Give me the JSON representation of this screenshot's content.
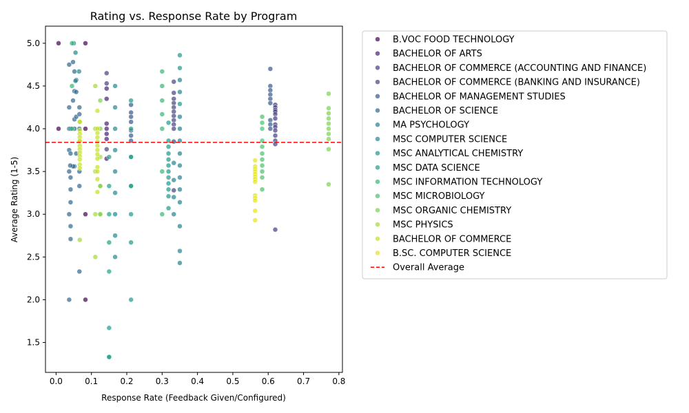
{
  "chart_data": {
    "type": "scatter",
    "title": "Rating vs. Response Rate by Program",
    "xlabel": "Response Rate (Feedback Given/Configured)",
    "ylabel": "Average Rating (1-5)",
    "xlim": [
      -0.03,
      0.81
    ],
    "ylim": [
      1.15,
      5.2
    ],
    "xticks": [
      0.0,
      0.1,
      0.2,
      0.3,
      0.4,
      0.5,
      0.6,
      0.7,
      0.8
    ],
    "xtick_labels": [
      "0.0",
      "0.1",
      "0.2",
      "0.3",
      "0.4",
      "0.5",
      "0.6",
      "0.7",
      "0.8"
    ],
    "yticks": [
      1.5,
      2.0,
      2.5,
      3.0,
      3.5,
      4.0,
      4.5,
      5.0
    ],
    "ytick_labels": [
      "1.5",
      "2.0",
      "2.5",
      "3.0",
      "3.5",
      "4.0",
      "4.5",
      "5.0"
    ],
    "grid": false,
    "legend_position": "outside-right",
    "reference_line": {
      "label": "Overall Average",
      "y": 3.84,
      "color": "#ff0000",
      "style": "dashed"
    },
    "series": [
      {
        "name": "B.VOC FOOD TECHNOLOGY",
        "color": "#440154",
        "points": [
          [
            0.007,
            5.0
          ],
          [
            0.007,
            4.0
          ],
          [
            0.083,
            5.0
          ],
          [
            0.083,
            4.0
          ],
          [
            0.083,
            3.0
          ],
          [
            0.083,
            2.0
          ]
        ]
      },
      {
        "name": "BACHELOR OF ARTS",
        "color": "#482173",
        "points": [
          [
            0.143,
            4.47
          ],
          [
            0.143,
            4.35
          ],
          [
            0.143,
            4.06
          ],
          [
            0.143,
            4.0
          ],
          [
            0.143,
            3.94
          ],
          [
            0.143,
            3.88
          ],
          [
            0.143,
            3.65
          ]
        ]
      },
      {
        "name": "BACHELOR OF COMMERCE (ACCOUNTING AND FINANCE)",
        "color": "#433e85",
        "points": [
          [
            0.62,
            4.28
          ],
          [
            0.62,
            4.25
          ],
          [
            0.62,
            4.22
          ],
          [
            0.62,
            4.2
          ],
          [
            0.62,
            4.17
          ],
          [
            0.62,
            4.12
          ],
          [
            0.62,
            4.05
          ],
          [
            0.62,
            4.02
          ],
          [
            0.62,
            3.98
          ],
          [
            0.62,
            3.92
          ],
          [
            0.62,
            3.86
          ],
          [
            0.62,
            3.82
          ],
          [
            0.62,
            2.82
          ]
        ]
      },
      {
        "name": "BACHELOR OF COMMERCE (BANKING AND INSURANCE)",
        "color": "#46427f",
        "points": [
          [
            0.333,
            4.42
          ],
          [
            0.333,
            4.35
          ],
          [
            0.333,
            4.3
          ],
          [
            0.333,
            4.25
          ],
          [
            0.333,
            4.2
          ],
          [
            0.333,
            4.15
          ],
          [
            0.333,
            4.1
          ],
          [
            0.333,
            4.05
          ],
          [
            0.333,
            4.0
          ],
          [
            0.333,
            3.85
          ],
          [
            0.143,
            4.65
          ],
          [
            0.143,
            4.53
          ],
          [
            0.143,
            3.76
          ],
          [
            0.333,
            4.55
          ],
          [
            0.333,
            3.28
          ]
        ]
      },
      {
        "name": "BACHELOR OF MANAGEMENT STUDIES",
        "color": "#38588c",
        "points": [
          [
            0.606,
            4.7
          ],
          [
            0.606,
            4.5
          ],
          [
            0.606,
            4.45
          ],
          [
            0.606,
            4.4
          ],
          [
            0.606,
            4.35
          ],
          [
            0.606,
            4.3
          ],
          [
            0.606,
            4.1
          ],
          [
            0.606,
            4.05
          ],
          [
            0.606,
            4.0
          ],
          [
            0.212,
            4.28
          ],
          [
            0.212,
            4.19
          ],
          [
            0.212,
            4.14
          ],
          [
            0.212,
            4.08
          ],
          [
            0.212,
            3.98
          ],
          [
            0.212,
            3.92
          ],
          [
            0.212,
            3.86
          ]
        ]
      },
      {
        "name": "BACHELOR OF SCIENCE",
        "color": "#31688e",
        "points": [
          [
            0.037,
            4.75
          ],
          [
            0.037,
            4.25
          ],
          [
            0.037,
            4.0
          ],
          [
            0.037,
            3.75
          ],
          [
            0.037,
            3.5
          ],
          [
            0.037,
            3.0
          ],
          [
            0.037,
            2.0
          ],
          [
            0.041,
            4.0
          ],
          [
            0.041,
            3.71
          ],
          [
            0.041,
            3.43
          ],
          [
            0.041,
            3.29
          ],
          [
            0.041,
            3.14
          ],
          [
            0.041,
            2.86
          ],
          [
            0.041,
            2.71
          ],
          [
            0.052,
            4.67
          ],
          [
            0.052,
            4.44
          ],
          [
            0.052,
            4.11
          ],
          [
            0.052,
            4.0
          ],
          [
            0.052,
            3.56
          ],
          [
            0.057,
            4.57
          ],
          [
            0.057,
            4.14
          ],
          [
            0.057,
            4.43
          ],
          [
            0.057,
            3.71
          ],
          [
            0.066,
            4.25
          ],
          [
            0.066,
            4.17
          ],
          [
            0.066,
            4.0
          ],
          [
            0.066,
            3.5
          ],
          [
            0.066,
            3.33
          ],
          [
            0.066,
            2.33
          ],
          [
            0.048,
            4.78
          ],
          [
            0.048,
            4.33
          ],
          [
            0.048,
            3.56
          ],
          [
            0.04,
            3.57
          ]
        ]
      },
      {
        "name": "MA PSYCHOLOGY",
        "color": "#26828e",
        "points": [
          [
            0.35,
            4.57
          ],
          [
            0.35,
            4.43
          ],
          [
            0.35,
            4.14
          ],
          [
            0.35,
            4.0
          ],
          [
            0.35,
            3.86
          ],
          [
            0.35,
            3.71
          ],
          [
            0.35,
            3.57
          ],
          [
            0.35,
            3.43
          ],
          [
            0.35,
            3.29
          ],
          [
            0.35,
            3.14
          ],
          [
            0.35,
            2.86
          ],
          [
            0.35,
            2.57
          ],
          [
            0.35,
            2.43
          ],
          [
            0.333,
            3.6
          ],
          [
            0.333,
            3.4
          ],
          [
            0.333,
            3.2
          ],
          [
            0.333,
            3.0
          ]
        ]
      },
      {
        "name": "MSC COMPUTER SCIENCE",
        "color": "#23898e",
        "points": [
          [
            0.167,
            4.5
          ],
          [
            0.167,
            4.25
          ],
          [
            0.167,
            4.0
          ],
          [
            0.167,
            3.75
          ],
          [
            0.167,
            3.5
          ],
          [
            0.167,
            3.25
          ],
          [
            0.167,
            3.0
          ],
          [
            0.167,
            2.75
          ],
          [
            0.167,
            2.5
          ],
          [
            0.065,
            4.67
          ],
          [
            0.055,
            4.89
          ],
          [
            0.05,
            5.0
          ],
          [
            0.055,
            4.56
          ]
        ]
      },
      {
        "name": "MSC ANALYTICAL CHEMISTRY",
        "color": "#1f988b",
        "points": [
          [
            0.35,
            4.86
          ],
          [
            0.35,
            4.71
          ],
          [
            0.35,
            4.29
          ],
          [
            0.318,
            4.07
          ],
          [
            0.318,
            3.86
          ],
          [
            0.318,
            3.79
          ],
          [
            0.318,
            3.71
          ],
          [
            0.318,
            3.64
          ],
          [
            0.318,
            3.57
          ],
          [
            0.318,
            3.5
          ],
          [
            0.318,
            3.43
          ],
          [
            0.318,
            3.36
          ],
          [
            0.318,
            3.29
          ],
          [
            0.318,
            3.21
          ],
          [
            0.318,
            3.07
          ],
          [
            0.212,
            4.33
          ],
          [
            0.212,
            3.67
          ],
          [
            0.212,
            3.33
          ],
          [
            0.212,
            3.0
          ],
          [
            0.212,
            2.67
          ],
          [
            0.212,
            2.0
          ],
          [
            0.15,
            1.67
          ],
          [
            0.15,
            1.33
          ]
        ]
      },
      {
        "name": "MSC DATA SCIENCE",
        "color": "#20a386",
        "points": [
          [
            0.15,
            3.33
          ],
          [
            0.15,
            3.0
          ],
          [
            0.15,
            2.67
          ],
          [
            0.15,
            2.33
          ],
          [
            0.15,
            1.33
          ],
          [
            0.15,
            3.67
          ],
          [
            0.212,
            4.0
          ],
          [
            0.212,
            3.67
          ],
          [
            0.212,
            3.33
          ]
        ]
      },
      {
        "name": "MSC INFORMATION TECHNOLOGY",
        "color": "#35b779",
        "points": [
          [
            0.3,
            4.67
          ],
          [
            0.3,
            4.5
          ],
          [
            0.3,
            4.33
          ],
          [
            0.3,
            4.17
          ],
          [
            0.3,
            4.0
          ],
          [
            0.3,
            3.5
          ],
          [
            0.3,
            3.0
          ],
          [
            0.125,
            3.33
          ],
          [
            0.125,
            3.0
          ],
          [
            0.045,
            5.0
          ],
          [
            0.045,
            4.5
          ],
          [
            0.045,
            4.0
          ]
        ]
      },
      {
        "name": "MSC MICROBIOLOGY",
        "color": "#4ac16d",
        "points": [
          [
            0.583,
            4.14
          ],
          [
            0.583,
            4.07
          ],
          [
            0.583,
            4.0
          ],
          [
            0.583,
            3.86
          ],
          [
            0.583,
            3.79
          ],
          [
            0.583,
            3.71
          ],
          [
            0.583,
            3.64
          ],
          [
            0.583,
            3.57
          ],
          [
            0.583,
            3.5
          ],
          [
            0.583,
            3.43
          ],
          [
            0.583,
            3.29
          ]
        ]
      },
      {
        "name": "MSC ORGANIC CHEMISTRY",
        "color": "#7ad151",
        "points": [
          [
            0.771,
            4.41
          ],
          [
            0.771,
            4.24
          ],
          [
            0.771,
            4.18
          ],
          [
            0.771,
            4.12
          ],
          [
            0.771,
            4.06
          ],
          [
            0.771,
            4.0
          ],
          [
            0.771,
            3.94
          ],
          [
            0.771,
            3.88
          ],
          [
            0.771,
            3.76
          ],
          [
            0.771,
            3.35
          ],
          [
            0.125,
            4.33
          ],
          [
            0.125,
            4.0
          ]
        ]
      },
      {
        "name": "MSC PHYSICS",
        "color": "#a0da39",
        "points": [
          [
            0.111,
            4.5
          ],
          [
            0.111,
            4.0
          ],
          [
            0.111,
            3.5
          ],
          [
            0.111,
            3.0
          ],
          [
            0.111,
            2.5
          ],
          [
            0.125,
            3.67
          ],
          [
            0.125,
            3.33
          ],
          [
            0.125,
            3.0
          ],
          [
            0.067,
            4.08
          ],
          [
            0.067,
            3.85
          ],
          [
            0.067,
            2.7
          ]
        ]
      },
      {
        "name": "BACHELOR OF COMMERCE",
        "color": "#c8e020",
        "points": [
          [
            0.117,
            4.21
          ],
          [
            0.117,
            4.0
          ],
          [
            0.117,
            3.95
          ],
          [
            0.117,
            3.9
          ],
          [
            0.117,
            3.85
          ],
          [
            0.117,
            3.8
          ],
          [
            0.117,
            3.75
          ],
          [
            0.117,
            3.7
          ],
          [
            0.117,
            3.65
          ],
          [
            0.117,
            3.55
          ],
          [
            0.117,
            3.5
          ],
          [
            0.117,
            3.41
          ],
          [
            0.117,
            3.26
          ],
          [
            0.067,
            3.98
          ],
          [
            0.067,
            3.94
          ],
          [
            0.067,
            3.9
          ],
          [
            0.067,
            3.86
          ],
          [
            0.067,
            3.8
          ],
          [
            0.067,
            3.76
          ],
          [
            0.067,
            3.72
          ],
          [
            0.067,
            3.68
          ],
          [
            0.067,
            3.64
          ],
          [
            0.067,
            3.58
          ],
          [
            0.067,
            3.54
          ],
          [
            0.067,
            4.08
          ]
        ]
      },
      {
        "name": "B.SC. COMPUTER SCIENCE",
        "color": "#e4e51a",
        "points": [
          [
            0.563,
            3.63
          ],
          [
            0.563,
            3.56
          ],
          [
            0.563,
            3.53
          ],
          [
            0.563,
            3.5
          ],
          [
            0.563,
            3.47
          ],
          [
            0.563,
            3.44
          ],
          [
            0.563,
            3.41
          ],
          [
            0.563,
            3.38
          ],
          [
            0.563,
            3.22
          ],
          [
            0.563,
            3.19
          ],
          [
            0.563,
            3.16
          ],
          [
            0.563,
            3.04
          ],
          [
            0.563,
            2.93
          ]
        ]
      }
    ]
  }
}
